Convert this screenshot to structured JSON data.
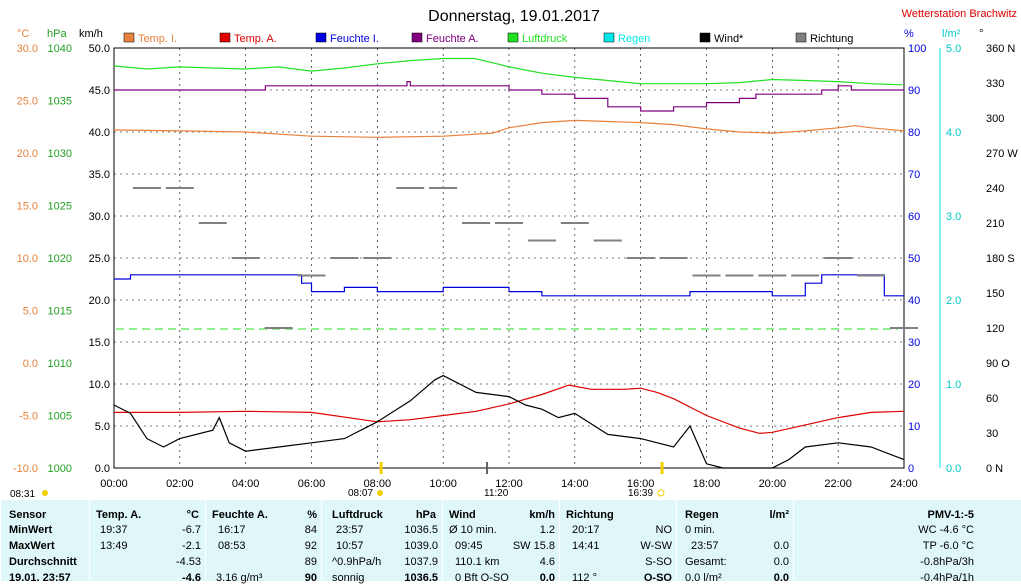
{
  "title": "Donnerstag, 19.01.2017",
  "station": "Wetterstation Brachwitz",
  "colors": {
    "temp_i": "#e8823c",
    "temp_a": "#e00000",
    "feuchte_i": "#0000e0",
    "feuchte_a": "#800080",
    "luftdruck": "#22e022",
    "regen": "#00e8e8",
    "wind": "#000000",
    "richtung": "#808080",
    "left_axis_c": "#e8823c",
    "left_axis_hpa": "#22a022",
    "right_axis_rain": "#00c8c8",
    "sun_marker": "#f0d000",
    "stats_bg": "#dff7f9"
  },
  "legend": [
    {
      "key": "temp_i",
      "label": "Temp. I."
    },
    {
      "key": "temp_a",
      "label": "Temp. A."
    },
    {
      "key": "feuchte_i",
      "label": "Feuchte I."
    },
    {
      "key": "feuchte_a",
      "label": "Feuchte A."
    },
    {
      "key": "luftdruck",
      "label": "Luftdruck"
    },
    {
      "key": "regen",
      "label": "Regen"
    },
    {
      "key": "wind",
      "label": "Wind*"
    },
    {
      "key": "richtung",
      "label": "Richtung"
    }
  ],
  "axis_units": {
    "c": "°C",
    "hpa": "hPa",
    "kmh": "km/h",
    "pct": "%",
    "lm2": "l/m²",
    "deg": "°"
  },
  "sun": {
    "sunrise": "08:07",
    "sunset": "16:39",
    "daylength": "08:31",
    "marker": "11:20"
  },
  "chart_data": {
    "type": "line",
    "x_label_times": [
      "00:00",
      "02:00",
      "04:00",
      "06:00",
      "08:00",
      "10:00",
      "12:00",
      "14:00",
      "16:00",
      "18:00",
      "20:00",
      "22:00",
      "24:00"
    ],
    "xlim_hours": [
      0,
      24
    ],
    "axes": {
      "kmh": {
        "ticks": [
          "0.0",
          "5.0",
          "10.0",
          "15.0",
          "20.0",
          "25.0",
          "30.0",
          "35.0",
          "40.0",
          "45.0",
          "50.0"
        ],
        "range": [
          0,
          50
        ]
      },
      "celsius": {
        "ticks": [
          "-10.0",
          "-5.0",
          "0.0",
          "5.0",
          "10.0",
          "15.0",
          "20.0",
          "25.0",
          "30.0"
        ],
        "range": [
          -10,
          30
        ]
      },
      "hpa": {
        "ticks": [
          "1000",
          "1005",
          "1010",
          "1015",
          "1020",
          "1025",
          "1030",
          "1035",
          "1040"
        ],
        "range": [
          1000,
          1040
        ]
      },
      "percent": {
        "ticks": [
          "0",
          "10",
          "20",
          "30",
          "40",
          "50",
          "60",
          "70",
          "80",
          "90",
          "100"
        ],
        "range": [
          0,
          100
        ]
      },
      "rain": {
        "ticks": [
          "0.0",
          "1.0",
          "2.0",
          "3.0",
          "4.0",
          "5.0"
        ],
        "range": [
          0,
          5
        ]
      },
      "direction": {
        "ticks": [
          "0 N",
          "30",
          "60",
          "90 O",
          "120",
          "150",
          "180 S",
          "210",
          "240",
          "270 W",
          "300",
          "330",
          "360 N"
        ],
        "range": [
          0,
          360
        ]
      }
    },
    "grid": true,
    "series": [
      {
        "key": "luftdruck",
        "name": "Luftdruck",
        "unit": "hPa",
        "points": [
          [
            0,
            1038.3
          ],
          [
            1,
            1038.0
          ],
          [
            2,
            1038.2
          ],
          [
            3,
            1038.1
          ],
          [
            4,
            1038.0
          ],
          [
            5,
            1038.2
          ],
          [
            6,
            1037.8
          ],
          [
            7,
            1038.1
          ],
          [
            8,
            1038.5
          ],
          [
            9,
            1038.8
          ],
          [
            10,
            1039.0
          ],
          [
            10.95,
            1039.0
          ],
          [
            11.5,
            1038.6
          ],
          [
            12,
            1038.2
          ],
          [
            13,
            1037.6
          ],
          [
            14,
            1037.2
          ],
          [
            15,
            1036.9
          ],
          [
            16,
            1036.6
          ],
          [
            17,
            1036.6
          ],
          [
            18,
            1036.6
          ],
          [
            19,
            1036.7
          ],
          [
            20,
            1037.0
          ],
          [
            21,
            1036.9
          ],
          [
            22,
            1036.8
          ],
          [
            23,
            1036.6
          ],
          [
            23.95,
            1036.5
          ]
        ]
      },
      {
        "key": "feuchte_a",
        "name": "Feuchte A.",
        "unit": "%",
        "points": [
          [
            0,
            90
          ],
          [
            4.5,
            90
          ],
          [
            4.6,
            91
          ],
          [
            8.8,
            91
          ],
          [
            8.9,
            92
          ],
          [
            9,
            91
          ],
          [
            11.5,
            91
          ],
          [
            12,
            90
          ],
          [
            13,
            89
          ],
          [
            14,
            88
          ],
          [
            15,
            86
          ],
          [
            16,
            85
          ],
          [
            17,
            86
          ],
          [
            18,
            87
          ],
          [
            19,
            88
          ],
          [
            19.5,
            89
          ],
          [
            21.5,
            90
          ],
          [
            22,
            91
          ],
          [
            22.3,
            91
          ],
          [
            22.4,
            90
          ],
          [
            24,
            90
          ]
        ]
      },
      {
        "key": "temp_i",
        "name": "Temp. I.",
        "unit": "°C",
        "points": [
          [
            0,
            22.2
          ],
          [
            2,
            22.1
          ],
          [
            4,
            22.0
          ],
          [
            6,
            21.6
          ],
          [
            8,
            21.5
          ],
          [
            10,
            21.6
          ],
          [
            11.5,
            21.9
          ],
          [
            12,
            22.4
          ],
          [
            13,
            22.9
          ],
          [
            14,
            23.1
          ],
          [
            15,
            23.0
          ],
          [
            16,
            22.9
          ],
          [
            17,
            22.7
          ],
          [
            18,
            22.3
          ],
          [
            19,
            22.0
          ],
          [
            20,
            21.9
          ],
          [
            21,
            22.1
          ],
          [
            22,
            22.4
          ],
          [
            22.5,
            22.6
          ],
          [
            23,
            22.4
          ],
          [
            24,
            22.1
          ]
        ]
      },
      {
        "key": "feuchte_i",
        "name": "Feuchte I.",
        "unit": "%",
        "points": [
          [
            0,
            45
          ],
          [
            0.5,
            46
          ],
          [
            5.5,
            46
          ],
          [
            5.7,
            44
          ],
          [
            6,
            42
          ],
          [
            7,
            43
          ],
          [
            8,
            42
          ],
          [
            9,
            42
          ],
          [
            10,
            43
          ],
          [
            11,
            43
          ],
          [
            12,
            42
          ],
          [
            13,
            41
          ],
          [
            14,
            41
          ],
          [
            16,
            41
          ],
          [
            17,
            41
          ],
          [
            17.5,
            42
          ],
          [
            19,
            42
          ],
          [
            20,
            41
          ],
          [
            21,
            44
          ],
          [
            21.5,
            46
          ],
          [
            23.2,
            46
          ],
          [
            23.4,
            41
          ],
          [
            24,
            41
          ]
        ]
      },
      {
        "key": "temp_a",
        "name": "Temp. A.",
        "unit": "°C",
        "points": [
          [
            0,
            -4.7
          ],
          [
            2,
            -4.7
          ],
          [
            4,
            -4.6
          ],
          [
            6,
            -4.7
          ],
          [
            8,
            -5.6
          ],
          [
            9,
            -5.4
          ],
          [
            10,
            -5.0
          ],
          [
            11,
            -4.6
          ],
          [
            12,
            -3.9
          ],
          [
            13,
            -3.0
          ],
          [
            13.82,
            -2.1
          ],
          [
            14.5,
            -2.5
          ],
          [
            15.5,
            -2.5
          ],
          [
            16,
            -2.4
          ],
          [
            16.5,
            -2.8
          ],
          [
            17,
            -3.4
          ],
          [
            18,
            -5.0
          ],
          [
            19,
            -6.2
          ],
          [
            19.62,
            -6.7
          ],
          [
            20,
            -6.6
          ],
          [
            21,
            -5.9
          ],
          [
            22,
            -5.2
          ],
          [
            23,
            -4.7
          ],
          [
            24,
            -4.6
          ]
        ]
      },
      {
        "key": "wind",
        "name": "Wind*",
        "unit": "km/h",
        "points": [
          [
            0,
            7.5
          ],
          [
            0.5,
            6.5
          ],
          [
            1,
            3.5
          ],
          [
            1.5,
            2.5
          ],
          [
            2,
            3.5
          ],
          [
            3,
            4.5
          ],
          [
            3.2,
            6
          ],
          [
            3.5,
            3
          ],
          [
            4,
            2
          ],
          [
            5,
            2.5
          ],
          [
            6,
            3.0
          ],
          [
            7,
            3.5
          ],
          [
            8,
            5.5
          ],
          [
            9,
            8
          ],
          [
            9.75,
            10.5
          ],
          [
            10,
            11
          ],
          [
            10.5,
            10
          ],
          [
            11,
            9
          ],
          [
            12,
            8.5
          ],
          [
            12.5,
            7.5
          ],
          [
            13,
            7
          ],
          [
            13.5,
            6
          ],
          [
            14,
            6.5
          ],
          [
            15,
            4
          ],
          [
            16,
            3.5
          ],
          [
            17,
            2.5
          ],
          [
            17.5,
            5
          ],
          [
            18,
            0.5
          ],
          [
            18.5,
            0
          ],
          [
            20,
            0
          ],
          [
            20.5,
            1
          ],
          [
            21,
            2.5
          ],
          [
            22,
            3
          ],
          [
            23,
            2.5
          ],
          [
            24,
            1.0
          ]
        ]
      },
      {
        "key": "richtung",
        "name": "Richtung",
        "unit": "°",
        "points": [
          [
            1,
            240
          ],
          [
            2,
            240
          ],
          [
            3,
            210
          ],
          [
            4,
            180
          ],
          [
            5,
            120
          ],
          [
            6,
            165
          ],
          [
            7,
            180
          ],
          [
            8,
            180
          ],
          [
            9,
            240
          ],
          [
            10,
            240
          ],
          [
            11,
            210
          ],
          [
            12,
            210
          ],
          [
            13,
            195
          ],
          [
            14,
            210
          ],
          [
            15,
            195
          ],
          [
            16,
            180
          ],
          [
            17,
            180
          ],
          [
            18,
            165
          ],
          [
            19,
            165
          ],
          [
            20,
            165
          ],
          [
            21,
            165
          ],
          [
            22,
            180
          ],
          [
            23,
            165
          ],
          [
            24,
            120
          ]
        ]
      }
    ]
  },
  "stats": {
    "headers": {
      "sensor": "Sensor",
      "temp_a": "Temp. A.",
      "temp_a_unit": "°C",
      "feuchte_a": "Feuchte A.",
      "feuchte_a_unit": "%",
      "luftdruck": "Luftdruck",
      "luftdruck_unit": "hPa",
      "wind": "Wind",
      "wind_unit": "km/h",
      "richtung": "Richtung",
      "regen": "Regen",
      "regen_unit": "l/m²",
      "pmv": "PMV-1:-5"
    },
    "rows": [
      {
        "label": "MinWert",
        "temp_a_t": "19:37",
        "temp_a_v": "-6.7",
        "feuchte_a_t": "16:17",
        "feuchte_a_v": "84",
        "luftdruck_t": "23:57",
        "luftdruck_v": "1036.5",
        "wind_t": "Ø 10 min.",
        "wind_v": "1.2",
        "richtung_t": "20:17",
        "richtung_v": "NO",
        "regen_t": "0 min.",
        "regen_v": "",
        "pmv": "WC -4.6 °C"
      },
      {
        "label": "MaxWert",
        "temp_a_t": "13:49",
        "temp_a_v": "-2.1",
        "feuchte_a_t": "08:53",
        "feuchte_a_v": "92",
        "luftdruck_t": "10:57",
        "luftdruck_v": "1039.0",
        "wind_t": "09:45",
        "wind_v": "SW 15.8",
        "richtung_t": "14:41",
        "richtung_v": "W-SW",
        "regen_t": "23:57",
        "regen_v": "0.0",
        "pmv": "TP -6.0 °C"
      },
      {
        "label": "Durchschnitt",
        "temp_a_t": "",
        "temp_a_v": "-4.53",
        "feuchte_a_t": "",
        "feuchte_a_v": "89",
        "luftdruck_t": "^0.9hPa/h",
        "luftdruck_v": "1037.9",
        "wind_t": "110.1 km",
        "wind_v": "4.6",
        "richtung_t": "",
        "richtung_v": "S-SO",
        "regen_t": "Gesamt:",
        "regen_v": "0.0",
        "pmv": "-0.8hPa/3h"
      },
      {
        "label": "19.01. 23:57",
        "temp_a_t": "",
        "temp_a_v": "-4.6",
        "feuchte_a_t": "3.16 g/m³",
        "feuchte_a_v": "90",
        "luftdruck_t": "sonnig",
        "luftdruck_v": "1036.5",
        "wind_t": "0 Bft O-SO",
        "wind_v": "0.0",
        "richtung_t": "112 °",
        "richtung_v": "O-SO",
        "regen_t": "0.0 l/m²",
        "regen_v": "0.0",
        "pmv": "-0.4hPa/1h"
      }
    ]
  }
}
